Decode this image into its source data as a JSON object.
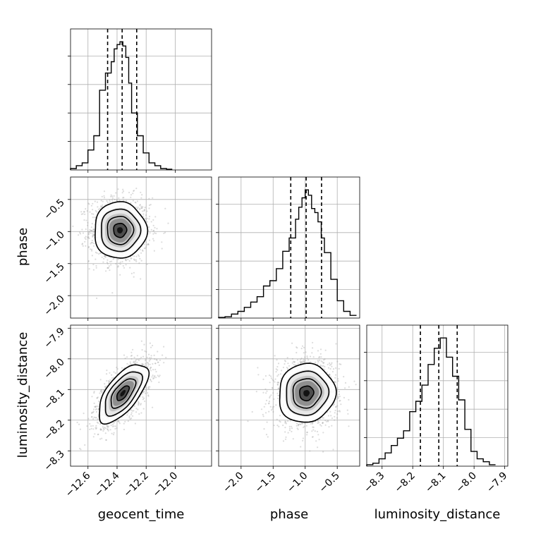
{
  "chart_data": {
    "type": "corner",
    "parameters": [
      "geocent_time",
      "phase",
      "luminosity_distance"
    ],
    "axis_labels": [
      "geocent_time",
      "phase",
      "luminosity_distance"
    ],
    "ranges": {
      "geocent_time": [
        -12.72,
        -11.75
      ],
      "phase": [
        -2.35,
        -0.15
      ],
      "luminosity_distance": [
        -8.35,
        -7.89
      ]
    },
    "ticks": {
      "geocent_time": {
        "values": [
          -12.6,
          -12.4,
          -12.2,
          -12.0
        ],
        "labels": [
          "−12.6",
          "−12.4",
          "−12.2",
          "−12.0"
        ]
      },
      "phase": {
        "values": [
          -2.0,
          -1.5,
          -1.0,
          -0.5
        ],
        "labels": [
          "−2.0",
          "−1.5",
          "−1.0",
          "−0.5"
        ]
      },
      "luminosity_distance": {
        "values": [
          -8.3,
          -8.2,
          -8.1,
          -8.0,
          -7.9
        ],
        "labels": [
          "−8.3",
          "−8.2",
          "−8.1",
          "−8.0",
          "−7.9"
        ]
      }
    },
    "histograms": [
      {
        "parameter": "geocent_time",
        "edges": [
          -12.72,
          -12.68,
          -12.64,
          -12.6,
          -12.56,
          -12.52,
          -12.48,
          -12.44,
          -12.42,
          -12.4,
          -12.38,
          -12.36,
          -12.34,
          -12.32,
          -12.3,
          -12.26,
          -12.22,
          -12.18,
          -12.14,
          -12.1,
          -12.06,
          -12.02
        ],
        "counts": [
          1,
          3,
          5,
          14,
          24,
          56,
          68,
          76,
          85,
          88,
          90,
          87,
          79,
          61,
          40,
          24,
          12,
          5,
          3,
          1,
          0.5
        ],
        "quantiles": [
          -12.465,
          -12.365,
          -12.265
        ]
      },
      {
        "parameter": "phase",
        "edges": [
          -2.35,
          -2.25,
          -2.15,
          -2.05,
          -1.95,
          -1.85,
          -1.75,
          -1.65,
          -1.55,
          -1.45,
          -1.35,
          -1.25,
          -1.15,
          -1.1,
          -1.05,
          -1.0,
          -0.95,
          -0.9,
          -0.85,
          -0.8,
          -0.75,
          -0.7,
          -0.6,
          -0.5,
          -0.4,
          -0.3,
          -0.2
        ],
        "counts": [
          0.5,
          1,
          3,
          5,
          8,
          12,
          16,
          24,
          28,
          37,
          50,
          60,
          74,
          83,
          90,
          96,
          92,
          82,
          79,
          72,
          60,
          49,
          29,
          13,
          5,
          2
        ],
        "quantiles": [
          -1.225,
          -0.985,
          -0.745
        ]
      },
      {
        "parameter": "luminosity_distance",
        "edges": [
          -8.35,
          -8.33,
          -8.31,
          -8.29,
          -8.27,
          -8.25,
          -8.23,
          -8.21,
          -8.19,
          -8.17,
          -8.15,
          -8.13,
          -8.11,
          -8.09,
          -8.07,
          -8.05,
          -8.03,
          -8.01,
          -7.99,
          -7.97,
          -7.95,
          -7.93
        ],
        "counts": [
          1,
          2,
          5,
          9,
          14,
          19,
          24,
          37,
          44,
          55,
          69,
          80,
          87,
          74,
          61,
          45,
          25,
          10,
          5,
          3,
          1
        ],
        "quantiles": [
          -8.175,
          -8.115,
          -8.055
        ]
      }
    ],
    "pairs": [
      {
        "x": "geocent_time",
        "y": "phase",
        "mean": [
          -12.38,
          -0.98
        ],
        "sd": [
          0.09,
          0.22
        ],
        "corr": 0.0
      },
      {
        "x": "geocent_time",
        "y": "luminosity_distance",
        "mean": [
          -12.36,
          -8.112
        ],
        "sd": [
          0.085,
          0.048
        ],
        "corr": 0.65
      },
      {
        "x": "phase",
        "y": "luminosity_distance",
        "mean": [
          -0.98,
          -8.112
        ],
        "sd": [
          0.22,
          0.048
        ],
        "corr": 0.05
      }
    ],
    "contour_levels_sigma": [
      0.5,
      1.0,
      1.5,
      2.0
    ],
    "quantile_line_style": "dashed",
    "grid": true
  }
}
